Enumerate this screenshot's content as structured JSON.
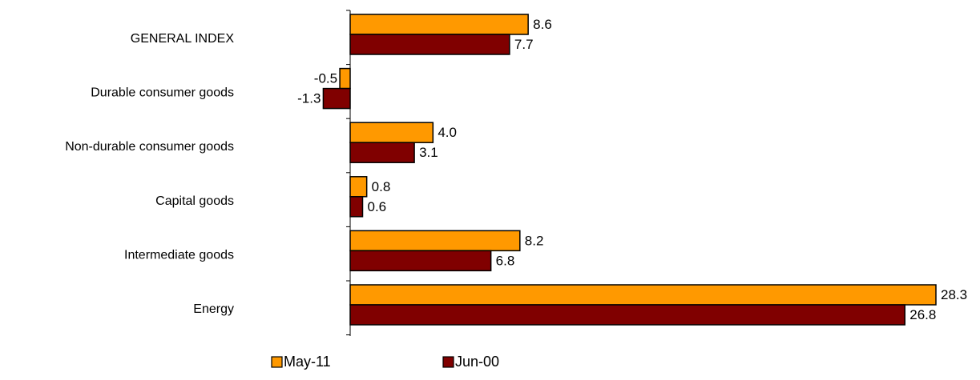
{
  "chart_data": {
    "type": "bar",
    "orientation": "horizontal",
    "categories": [
      "GENERAL INDEX",
      "Durable consumer goods",
      "Non-durable consumer goods",
      "Capital goods",
      "Intermediate goods",
      "Energy"
    ],
    "series": [
      {
        "name": "May-11",
        "values": [
          8.6,
          -0.5,
          4.0,
          0.8,
          8.2,
          28.3
        ],
        "value_labels": [
          "8.6",
          "-0.5",
          "4.0",
          "0.8",
          "8.2",
          "28.3"
        ],
        "color": "#FF9900"
      },
      {
        "name": "Jun-00",
        "values": [
          7.7,
          -1.3,
          3.1,
          0.6,
          6.8,
          26.8
        ],
        "value_labels": [
          "7.7",
          "-1.3",
          "3.1",
          "0.6",
          "6.8",
          "26.8"
        ],
        "color": "#800000"
      }
    ],
    "xlim": [
      -1.3,
      28.3
    ],
    "legend_position": "bottom",
    "grid": false,
    "data_labels": true
  }
}
